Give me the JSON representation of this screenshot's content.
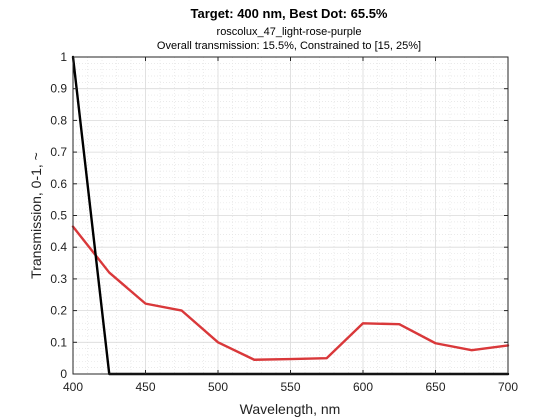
{
  "chart_data": {
    "type": "line",
    "title": "Target: 400 nm, Best Dot: 65.5%",
    "subtitle_lines": [
      "roscolux_47_light-rose-purple",
      "Overall transmission: 15.5%, Constrained to [15, 25%]"
    ],
    "xlabel": "Wavelength, nm",
    "ylabel": "Transmission, 0-1, ~",
    "xlim": [
      400,
      700
    ],
    "ylim": [
      0,
      1
    ],
    "xticks": [
      "400",
      "450",
      "500",
      "550",
      "600",
      "650",
      "700"
    ],
    "yticks": [
      "0",
      "0.1",
      "0.2",
      "0.3",
      "0.4",
      "0.5",
      "0.6",
      "0.7",
      "0.8",
      "0.9",
      "1"
    ],
    "grid": true,
    "minor_grid": true,
    "series": [
      {
        "color": "#d9383a",
        "x": [
          400,
          425,
          450,
          475,
          500,
          525,
          550,
          575,
          600,
          625,
          650,
          675,
          700
        ],
        "y": [
          0.465,
          0.32,
          0.222,
          0.2,
          0.1,
          0.045,
          0.047,
          0.05,
          0.16,
          0.157,
          0.097,
          0.075,
          0.09
        ]
      },
      {
        "color": "#000000",
        "x": [
          400,
          425,
          450,
          475,
          500,
          525,
          550,
          575,
          600,
          625,
          650,
          675,
          700
        ],
        "y": [
          1,
          0,
          0,
          0,
          0,
          0,
          0,
          0,
          0,
          0,
          0,
          0,
          0
        ]
      }
    ]
  }
}
